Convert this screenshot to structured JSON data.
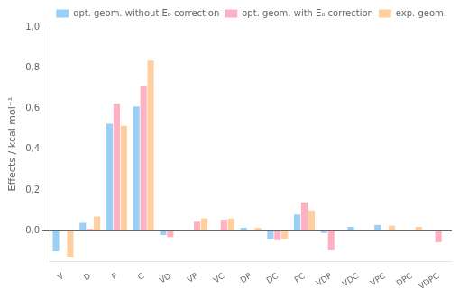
{
  "chart_data": {
    "type": "bar",
    "categories": [
      "V",
      "D",
      "P",
      "C",
      "VD",
      "VP",
      "VC",
      "DP",
      "DC",
      "PC",
      "VDP",
      "VDC",
      "VPC",
      "DPC",
      "VDPC"
    ],
    "series": [
      {
        "name": "opt. geom. without E₀ correction",
        "values": [
          -0.1,
          0.04,
          0.525,
          0.61,
          -0.02,
          0.0,
          0.0,
          0.015,
          -0.04,
          0.08,
          -0.01,
          0.02,
          0.03,
          0.0,
          0.0
        ]
      },
      {
        "name": "opt. geom. with E₀ correction",
        "values": [
          0.0,
          0.01,
          0.625,
          0.71,
          -0.03,
          0.045,
          0.055,
          0.0,
          -0.045,
          0.14,
          -0.095,
          0.0,
          0.0,
          0.0,
          -0.055
        ]
      },
      {
        "name": "exp. geom.",
        "values": [
          -0.13,
          0.07,
          0.515,
          0.835,
          0.0,
          0.06,
          0.06,
          0.015,
          -0.04,
          0.1,
          0.0,
          0.0,
          0.025,
          0.02,
          0.0
        ]
      }
    ],
    "ylabel": "Effects / kcal mol⁻¹",
    "ylim": [
      -0.15,
      1.0
    ],
    "yticks": [
      {
        "value": 0.0,
        "label": "0,0"
      },
      {
        "value": 0.2,
        "label": "0,2"
      },
      {
        "value": 0.4,
        "label": "0,4"
      },
      {
        "value": 0.6,
        "label": "0,6"
      },
      {
        "value": 0.8,
        "label": "0,8"
      },
      {
        "value": 1.0,
        "label": "1,0"
      }
    ],
    "grid": false,
    "legend": "upper right"
  }
}
